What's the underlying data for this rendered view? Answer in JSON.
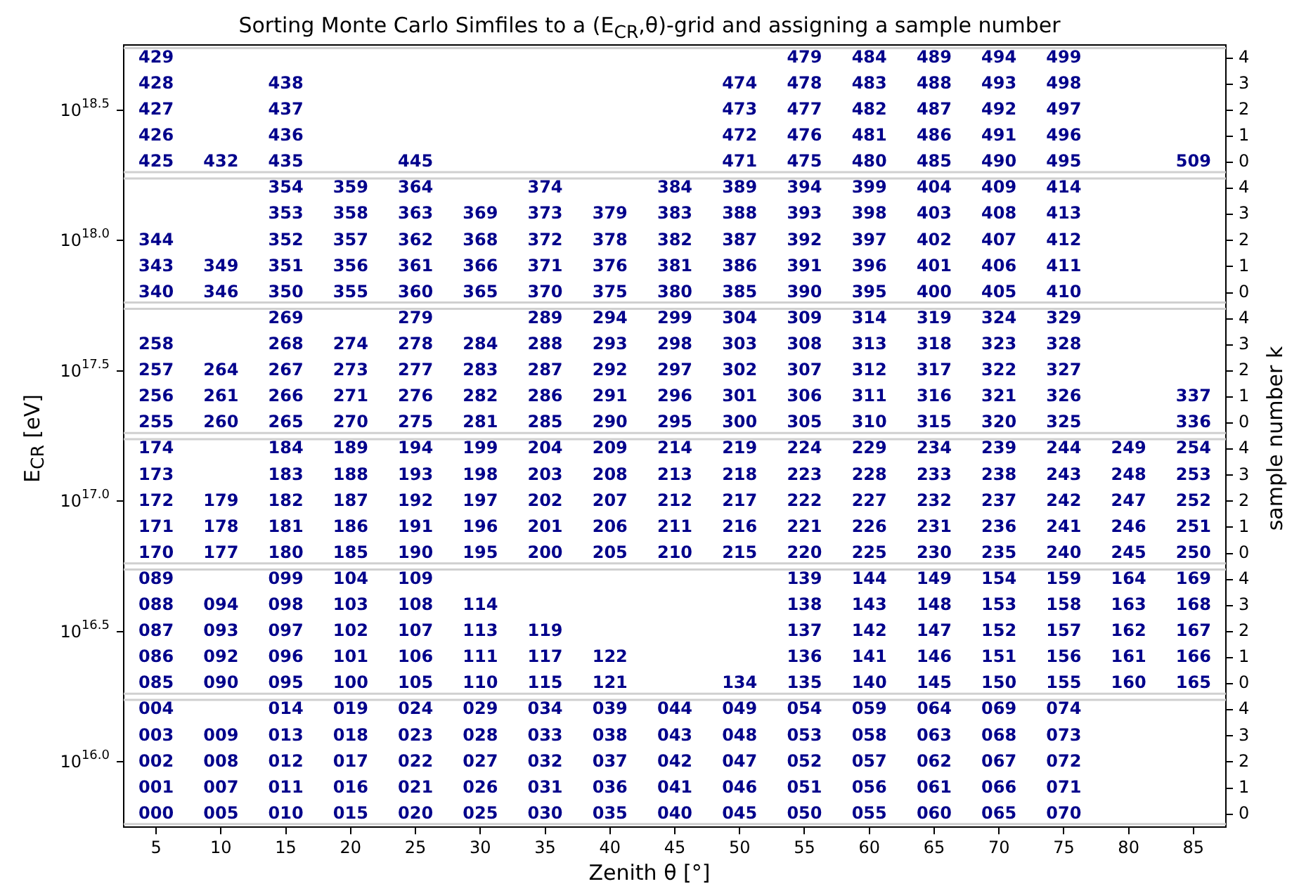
{
  "chart_data": {
    "type": "heatmap",
    "title": "Sorting Monte Carlo Simfiles to a (E$_{CR}$,θ)-grid and assigning a sample number",
    "xlabel": "Zenith θ [°]",
    "ylabel": "E$_{CR}$ [eV]",
    "y2label": "sample number k",
    "color": "#00008b",
    "categories": [
      "5",
      "10",
      "15",
      "20",
      "25",
      "30",
      "35",
      "40",
      "45",
      "50",
      "55",
      "60",
      "65",
      "70",
      "75",
      "80",
      "85"
    ],
    "y_categories": [
      null,
      null,
      "10$^{18.5}$",
      null,
      null,
      null,
      null,
      "10$^{18.0}$",
      null,
      null,
      null,
      null,
      "10$^{17.5}$",
      null,
      null,
      null,
      null,
      "10$^{17.0}$",
      null,
      null,
      null,
      null,
      "10$^{16.5}$",
      null,
      null,
      null,
      null,
      "10$^{16.0}$",
      null,
      null
    ],
    "y2_categories": [
      "4",
      "3",
      "2",
      "1",
      "0",
      "4",
      "3",
      "2",
      "1",
      "0",
      "4",
      "3",
      "2",
      "1",
      "0",
      "4",
      "3",
      "2",
      "1",
      "0",
      "4",
      "3",
      "2",
      "1",
      "0",
      "4",
      "3",
      "2",
      "1",
      "0"
    ],
    "cells": [
      [
        429,
        null,
        null,
        null,
        null,
        null,
        null,
        null,
        null,
        null,
        479,
        484,
        489,
        494,
        499,
        null,
        null
      ],
      [
        428,
        null,
        438,
        null,
        null,
        null,
        null,
        null,
        null,
        474,
        478,
        483,
        488,
        493,
        498,
        null,
        null
      ],
      [
        427,
        null,
        437,
        null,
        null,
        null,
        null,
        null,
        null,
        473,
        477,
        482,
        487,
        492,
        497,
        null,
        null
      ],
      [
        426,
        null,
        436,
        null,
        null,
        null,
        null,
        null,
        null,
        472,
        476,
        481,
        486,
        491,
        496,
        null,
        null
      ],
      [
        425,
        432,
        435,
        null,
        445,
        null,
        null,
        null,
        null,
        471,
        475,
        480,
        485,
        490,
        495,
        null,
        509
      ],
      [
        null,
        null,
        354,
        359,
        364,
        null,
        374,
        null,
        384,
        389,
        394,
        399,
        404,
        409,
        414,
        null,
        null
      ],
      [
        null,
        null,
        353,
        358,
        363,
        369,
        373,
        379,
        383,
        388,
        393,
        398,
        403,
        408,
        413,
        null,
        null
      ],
      [
        344,
        null,
        352,
        357,
        362,
        368,
        372,
        378,
        382,
        387,
        392,
        397,
        402,
        407,
        412,
        null,
        null
      ],
      [
        343,
        349,
        351,
        356,
        361,
        366,
        371,
        376,
        381,
        386,
        391,
        396,
        401,
        406,
        411,
        null,
        null
      ],
      [
        340,
        346,
        350,
        355,
        360,
        365,
        370,
        375,
        380,
        385,
        390,
        395,
        400,
        405,
        410,
        null,
        null
      ],
      [
        null,
        null,
        269,
        null,
        279,
        null,
        289,
        294,
        299,
        304,
        309,
        314,
        319,
        324,
        329,
        null,
        null
      ],
      [
        258,
        null,
        268,
        274,
        278,
        284,
        288,
        293,
        298,
        303,
        308,
        313,
        318,
        323,
        328,
        null,
        null
      ],
      [
        257,
        264,
        267,
        273,
        277,
        283,
        287,
        292,
        297,
        302,
        307,
        312,
        317,
        322,
        327,
        null,
        null
      ],
      [
        256,
        261,
        266,
        271,
        276,
        282,
        286,
        291,
        296,
        301,
        306,
        311,
        316,
        321,
        326,
        null,
        337
      ],
      [
        255,
        260,
        265,
        270,
        275,
        281,
        285,
        290,
        295,
        300,
        305,
        310,
        315,
        320,
        325,
        null,
        336
      ],
      [
        174,
        null,
        184,
        189,
        194,
        199,
        204,
        209,
        214,
        219,
        224,
        229,
        234,
        239,
        244,
        249,
        254
      ],
      [
        173,
        null,
        183,
        188,
        193,
        198,
        203,
        208,
        213,
        218,
        223,
        228,
        233,
        238,
        243,
        248,
        253
      ],
      [
        172,
        179,
        182,
        187,
        192,
        197,
        202,
        207,
        212,
        217,
        222,
        227,
        232,
        237,
        242,
        247,
        252
      ],
      [
        171,
        178,
        181,
        186,
        191,
        196,
        201,
        206,
        211,
        216,
        221,
        226,
        231,
        236,
        241,
        246,
        251
      ],
      [
        170,
        177,
        180,
        185,
        190,
        195,
        200,
        205,
        210,
        215,
        220,
        225,
        230,
        235,
        240,
        245,
        250
      ],
      [
        89,
        null,
        99,
        104,
        109,
        null,
        null,
        null,
        null,
        null,
        139,
        144,
        149,
        154,
        159,
        164,
        169
      ],
      [
        88,
        94,
        98,
        103,
        108,
        114,
        null,
        null,
        null,
        null,
        138,
        143,
        148,
        153,
        158,
        163,
        168
      ],
      [
        87,
        93,
        97,
        102,
        107,
        113,
        119,
        null,
        null,
        null,
        137,
        142,
        147,
        152,
        157,
        162,
        167
      ],
      [
        86,
        92,
        96,
        101,
        106,
        111,
        117,
        122,
        null,
        null,
        136,
        141,
        146,
        151,
        156,
        161,
        166
      ],
      [
        85,
        90,
        95,
        100,
        105,
        110,
        115,
        121,
        null,
        134,
        135,
        140,
        145,
        150,
        155,
        160,
        165
      ],
      [
        4,
        null,
        14,
        19,
        24,
        29,
        34,
        39,
        44,
        49,
        54,
        59,
        64,
        69,
        74,
        null,
        null
      ],
      [
        3,
        9,
        13,
        18,
        23,
        28,
        33,
        38,
        43,
        48,
        53,
        58,
        63,
        68,
        73,
        null,
        null
      ],
      [
        2,
        8,
        12,
        17,
        22,
        27,
        32,
        37,
        42,
        47,
        52,
        57,
        62,
        67,
        72,
        null,
        null
      ],
      [
        1,
        7,
        11,
        16,
        21,
        26,
        31,
        36,
        41,
        46,
        51,
        56,
        61,
        66,
        71,
        null,
        null
      ],
      [
        0,
        5,
        10,
        15,
        20,
        25,
        30,
        35,
        40,
        45,
        50,
        55,
        60,
        65,
        70,
        null,
        null
      ]
    ],
    "cell_labels": [
      [
        "429",
        null,
        null,
        null,
        null,
        null,
        null,
        null,
        null,
        null,
        "479",
        "484",
        "489",
        "494",
        "499",
        null,
        null
      ],
      [
        "428",
        null,
        "438",
        null,
        null,
        null,
        null,
        null,
        null,
        "474",
        "478",
        "483",
        "488",
        "493",
        "498",
        null,
        null
      ],
      [
        "427",
        null,
        "437",
        null,
        null,
        null,
        null,
        null,
        null,
        "473",
        "477",
        "482",
        "487",
        "492",
        "497",
        null,
        null
      ],
      [
        "426",
        null,
        "436",
        null,
        null,
        null,
        null,
        null,
        null,
        "472",
        "476",
        "481",
        "486",
        "491",
        "496",
        null,
        null
      ],
      [
        "425",
        "432",
        "435",
        null,
        "445",
        null,
        null,
        null,
        null,
        "471",
        "475",
        "480",
        "485",
        "490",
        "495",
        null,
        "509"
      ],
      [
        null,
        null,
        "354",
        "359",
        "364",
        null,
        "374",
        null,
        "384",
        "389",
        "394",
        "399",
        "404",
        "409",
        "414",
        null,
        null
      ],
      [
        null,
        null,
        "353",
        "358",
        "363",
        "369",
        "373",
        "379",
        "383",
        "388",
        "393",
        "398",
        "403",
        "408",
        "413",
        null,
        null
      ],
      [
        "344",
        null,
        "352",
        "357",
        "362",
        "368",
        "372",
        "378",
        "382",
        "387",
        "392",
        "397",
        "402",
        "407",
        "412",
        null,
        null
      ],
      [
        "343",
        "349",
        "351",
        "356",
        "361",
        "366",
        "371",
        "376",
        "381",
        "386",
        "391",
        "396",
        "401",
        "406",
        "411",
        null,
        null
      ],
      [
        "340",
        "346",
        "350",
        "355",
        "360",
        "365",
        "370",
        "375",
        "380",
        "385",
        "390",
        "395",
        "400",
        "405",
        "410",
        null,
        null
      ],
      [
        null,
        null,
        "269",
        null,
        "279",
        null,
        "289",
        "294",
        "299",
        "304",
        "309",
        "314",
        "319",
        "324",
        "329",
        null,
        null
      ],
      [
        "258",
        null,
        "268",
        "274",
        "278",
        "284",
        "288",
        "293",
        "298",
        "303",
        "308",
        "313",
        "318",
        "323",
        "328",
        null,
        null
      ],
      [
        "257",
        "264",
        "267",
        "273",
        "277",
        "283",
        "287",
        "292",
        "297",
        "302",
        "307",
        "312",
        "317",
        "322",
        "327",
        null,
        null
      ],
      [
        "256",
        "261",
        "266",
        "271",
        "276",
        "282",
        "286",
        "291",
        "296",
        "301",
        "306",
        "311",
        "316",
        "321",
        "326",
        null,
        "337"
      ],
      [
        "255",
        "260",
        "265",
        "270",
        "275",
        "281",
        "285",
        "290",
        "295",
        "300",
        "305",
        "310",
        "315",
        "320",
        "325",
        null,
        "336"
      ],
      [
        "174",
        null,
        "184",
        "189",
        "194",
        "199",
        "204",
        "209",
        "214",
        "219",
        "224",
        "229",
        "234",
        "239",
        "244",
        "249",
        "254"
      ],
      [
        "173",
        null,
        "183",
        "188",
        "193",
        "198",
        "203",
        "208",
        "213",
        "218",
        "223",
        "228",
        "233",
        "238",
        "243",
        "248",
        "253"
      ],
      [
        "172",
        "179",
        "182",
        "187",
        "192",
        "197",
        "202",
        "207",
        "212",
        "217",
        "222",
        "227",
        "232",
        "237",
        "242",
        "247",
        "252"
      ],
      [
        "171",
        "178",
        "181",
        "186",
        "191",
        "196",
        "201",
        "206",
        "211",
        "216",
        "221",
        "226",
        "231",
        "236",
        "241",
        "246",
        "251"
      ],
      [
        "170",
        "177",
        "180",
        "185",
        "190",
        "195",
        "200",
        "205",
        "210",
        "215",
        "220",
        "225",
        "230",
        "235",
        "240",
        "245",
        "250"
      ],
      [
        "089",
        null,
        "099",
        "104",
        "109",
        null,
        null,
        null,
        null,
        null,
        "139",
        "144",
        "149",
        "154",
        "159",
        "164",
        "169"
      ],
      [
        "088",
        "094",
        "098",
        "103",
        "108",
        "114",
        null,
        null,
        null,
        null,
        "138",
        "143",
        "148",
        "153",
        "158",
        "163",
        "168"
      ],
      [
        "087",
        "093",
        "097",
        "102",
        "107",
        "113",
        "119",
        null,
        null,
        null,
        "137",
        "142",
        "147",
        "152",
        "157",
        "162",
        "167"
      ],
      [
        "086",
        "092",
        "096",
        "101",
        "106",
        "111",
        "117",
        "122",
        null,
        null,
        "136",
        "141",
        "146",
        "151",
        "156",
        "161",
        "166"
      ],
      [
        "085",
        "090",
        "095",
        "100",
        "105",
        "110",
        "115",
        "121",
        null,
        "134",
        "135",
        "140",
        "145",
        "150",
        "155",
        "160",
        "165"
      ],
      [
        "004",
        null,
        "014",
        "019",
        "024",
        "029",
        "034",
        "039",
        "044",
        "049",
        "054",
        "059",
        "064",
        "069",
        "074",
        null,
        null
      ],
      [
        "003",
        "009",
        "013",
        "018",
        "023",
        "028",
        "033",
        "038",
        "043",
        "048",
        "053",
        "058",
        "063",
        "068",
        "073",
        null,
        null
      ],
      [
        "002",
        "008",
        "012",
        "017",
        "022",
        "027",
        "032",
        "037",
        "042",
        "047",
        "052",
        "057",
        "062",
        "067",
        "072",
        null,
        null
      ],
      [
        "001",
        "007",
        "011",
        "016",
        "021",
        "026",
        "031",
        "036",
        "041",
        "046",
        "051",
        "056",
        "061",
        "066",
        "071",
        null,
        null
      ],
      [
        "000",
        "005",
        "010",
        "015",
        "020",
        "025",
        "030",
        "035",
        "040",
        "045",
        "050",
        "055",
        "060",
        "065",
        "070",
        null,
        null
      ]
    ]
  }
}
